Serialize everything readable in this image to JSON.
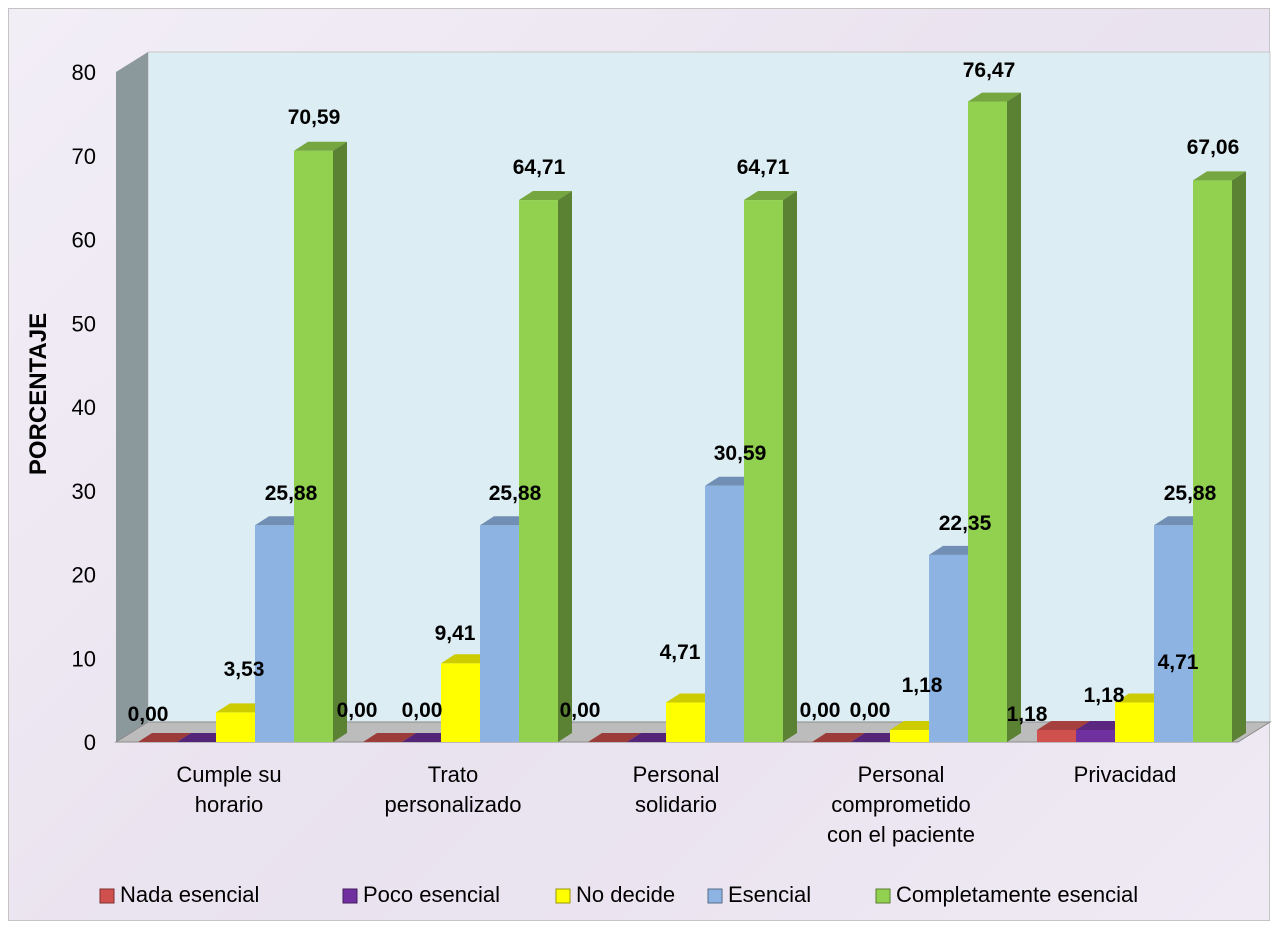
{
  "chart_data": {
    "type": "bar",
    "title": "",
    "xlabel": "",
    "ylabel": "PORCENTAJE",
    "ylim": [
      0,
      80
    ],
    "yticks": [
      "0",
      "10",
      "20",
      "30",
      "40",
      "50",
      "60",
      "70",
      "80"
    ],
    "categories": [
      [
        "Cumple su",
        "horario"
      ],
      [
        "Trato",
        "personalizado"
      ],
      [
        "Personal",
        "solidario"
      ],
      [
        "Personal",
        "comprometido",
        "con el paciente"
      ],
      [
        "Privacidad"
      ]
    ],
    "series": [
      {
        "name": "Nada esencial",
        "color": "#d0504d",
        "values": [
          0,
          0,
          0,
          0,
          1.18
        ],
        "labels": [
          "0,00",
          "0,00",
          "0,00",
          "0,00",
          "1,18"
        ]
      },
      {
        "name": "Poco esencial",
        "color": "#7030a0",
        "values": [
          0,
          0,
          0,
          0,
          1.18
        ],
        "labels": [
          "",
          "0,00",
          "",
          "0,00",
          "1,18"
        ]
      },
      {
        "name": "No decide",
        "color": "#ffff00",
        "values": [
          3.53,
          9.41,
          4.71,
          1.18,
          4.71
        ],
        "labels": [
          "3,53",
          "9,41",
          "4,71",
          "1,18",
          "4,71"
        ]
      },
      {
        "name": "Esencial",
        "color": "#8db3e2",
        "values": [
          25.88,
          25.88,
          30.59,
          22.35,
          25.88
        ],
        "labels": [
          "25,88",
          "25,88",
          "30,59",
          "22,35",
          "25,88"
        ]
      },
      {
        "name": "Completamente esencial",
        "color": "#92d050",
        "values": [
          70.59,
          64.71,
          64.71,
          76.47,
          67.06
        ],
        "labels": [
          "70,59",
          "64,71",
          "64,71",
          "76,47",
          "67,06"
        ]
      }
    ],
    "extra_labels": [
      "0,00",
      "0,00",
      "0,00"
    ],
    "legend_position": "bottom",
    "grid": false
  }
}
